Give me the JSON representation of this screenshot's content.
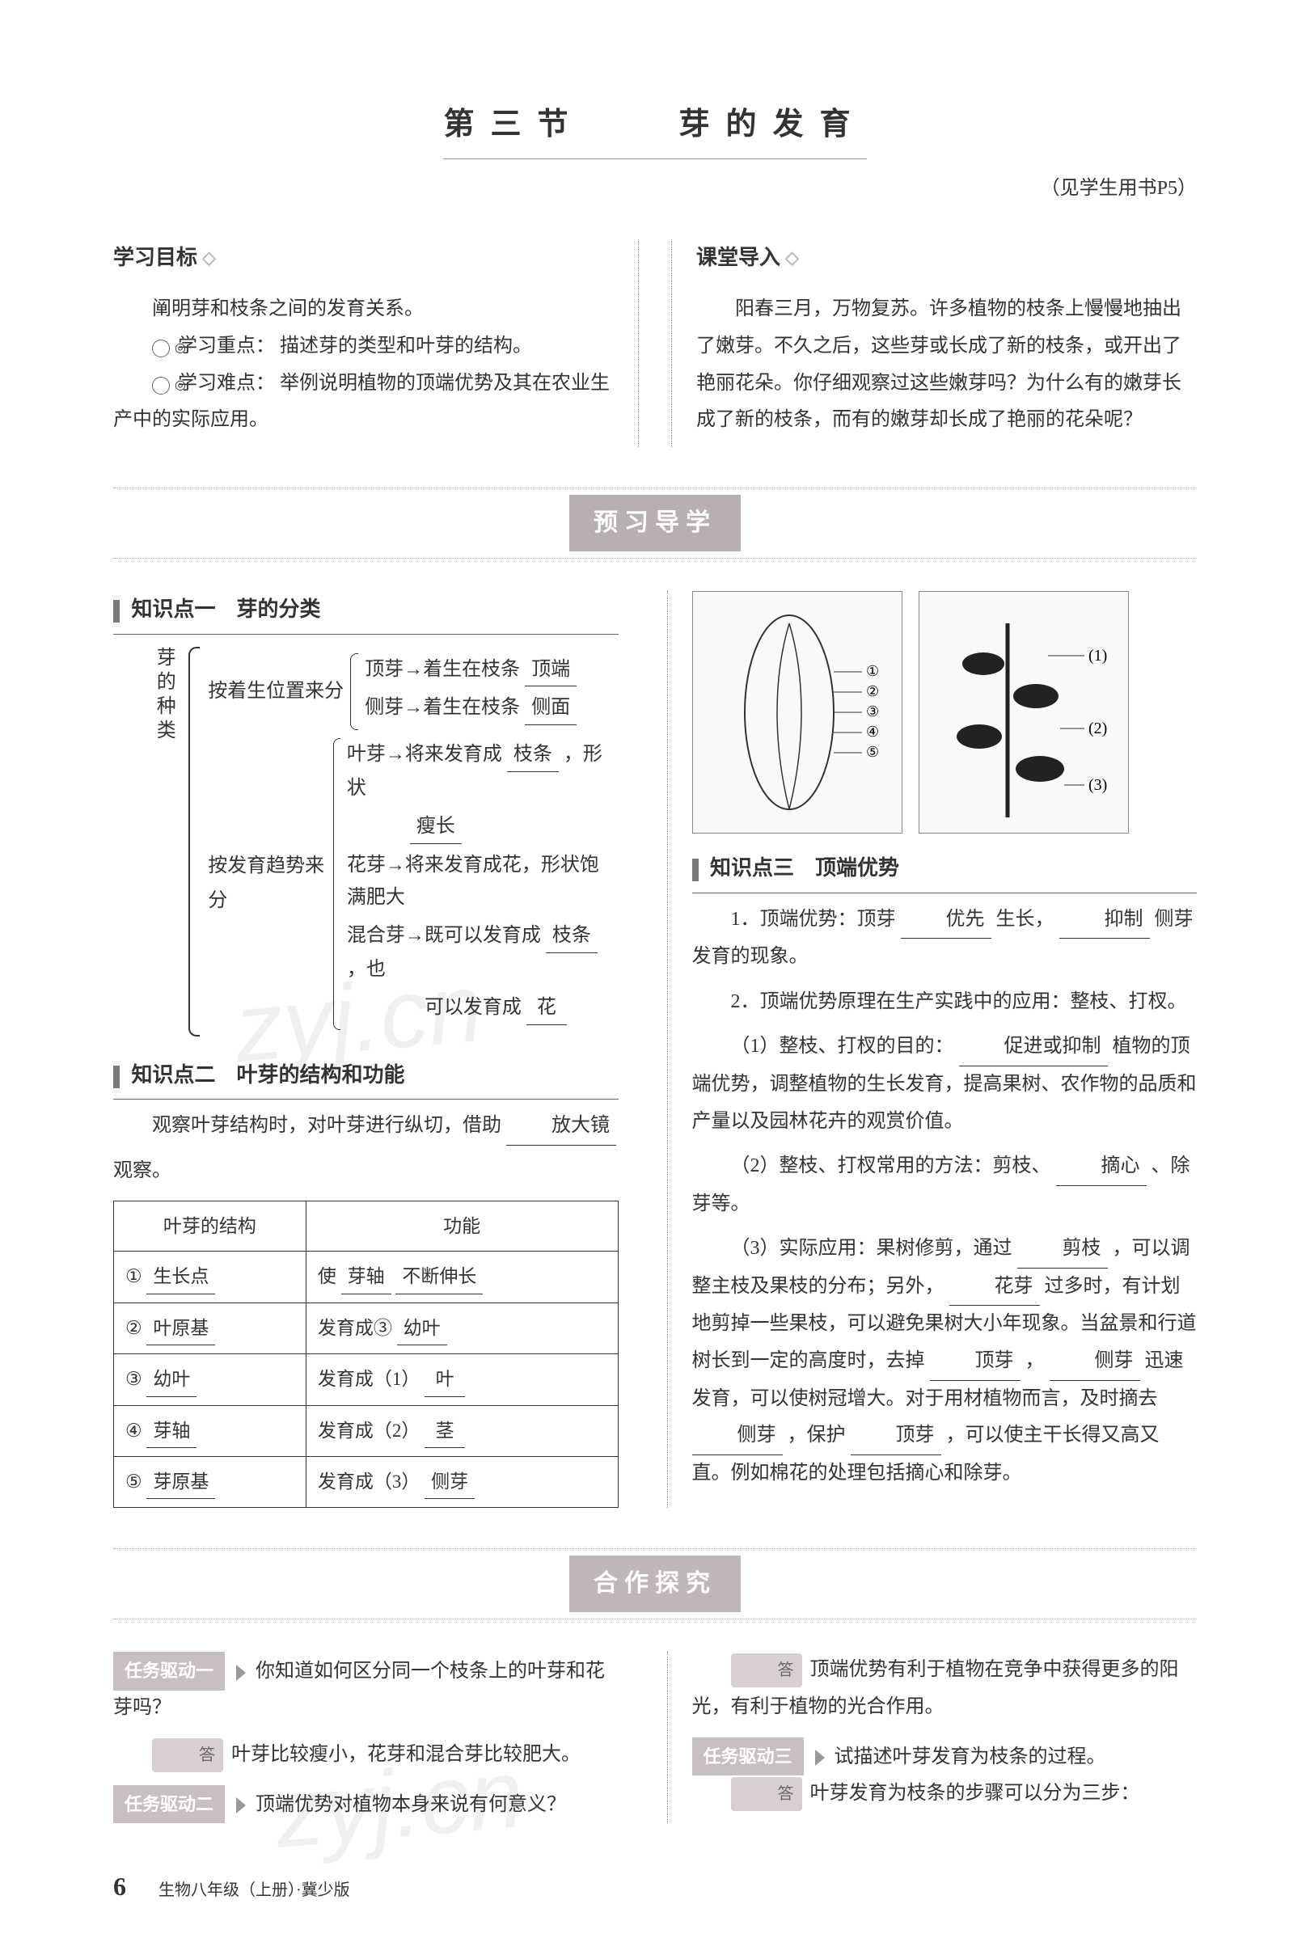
{
  "title": {
    "section_number": "第三节",
    "section_name": "芽的发育",
    "reference": "（见学生用书P5）"
  },
  "objectives": {
    "heading": "学习目标",
    "main": "阐明芽和枝条之间的发育关系。",
    "focus_label": "学习重点：",
    "focus_text": "描述芽的类型和叶芽的结构。",
    "difficulty_label": "学习难点：",
    "difficulty_text": "举例说明植物的顶端优势及其在农业生产中的实际应用。"
  },
  "lead_in": {
    "heading": "课堂导入",
    "text": "阳春三月，万物复苏。许多植物的枝条上慢慢地抽出了嫩芽。不久之后，这些芽或长成了新的枝条，或开出了艳丽花朵。你仔细观察过这些嫩芽吗？为什么有的嫩芽长成了新的枝条，而有的嫩芽却长成了艳丽的花朵呢？"
  },
  "banner1": "预习导学",
  "kp1": {
    "label": "知识点一　芽的分类",
    "root": "芽的种类",
    "branch1_label": "按着生位置来分",
    "branch1_lines": {
      "l1_pre": "顶芽→着生在枝条",
      "l1_blank": "顶端",
      "l2_pre": "侧芽→着生在枝条",
      "l2_blank": "侧面"
    },
    "branch2_label": "按发育趋势来分",
    "branch2_lines": {
      "l1_pre": "叶芽→将来发育成",
      "l1_blank": "枝条",
      "l1_post": "，形状",
      "l1b_blank": "瘦长",
      "l2_pre": "花芽→将来发育成花，形状饱满肥大",
      "l3_pre": "混合芽→既可以发育成",
      "l3_blank": "枝条",
      "l3_post": "，也",
      "l4_pre": "　　　　可以发育成",
      "l4_blank": "花"
    }
  },
  "kp2": {
    "label": "知识点二　叶芽的结构和功能",
    "intro_pre": "观察叶芽结构时，对叶芽进行纵切，借助",
    "intro_blank": "放大镜",
    "intro_post": "观察。",
    "table": {
      "header1": "叶芽的结构",
      "header2": "功能",
      "rows": [
        {
          "num": "①",
          "c1_blank": "生长点",
          "c2_pre": "使",
          "c2_blank1": "芽轴",
          "c2_blank2": "不断伸长"
        },
        {
          "num": "②",
          "c1_blank": "叶原基",
          "c2_pre": "发育成③",
          "c2_blank1": "幼叶",
          "c2_blank2": ""
        },
        {
          "num": "③",
          "c1_blank": "幼叶",
          "c2_pre": "发育成（1）",
          "c2_blank1": "叶",
          "c2_blank2": ""
        },
        {
          "num": "④",
          "c1_blank": "芽轴",
          "c2_pre": "发育成（2）",
          "c2_blank1": "茎",
          "c2_blank2": ""
        },
        {
          "num": "⑤",
          "c1_blank": "芽原基",
          "c2_pre": "发育成（3）",
          "c2_blank1": "侧芽",
          "c2_blank2": ""
        }
      ]
    }
  },
  "kp3": {
    "label": "知识点三　顶端优势",
    "item1_pre": "1．顶端优势：顶芽",
    "item1_b1": "优先",
    "item1_mid": "生长，",
    "item1_b2": "抑制",
    "item1_post": "侧芽发育的现象。",
    "item2": "2．顶端优势原理在生产实践中的应用：整枝、打杈。",
    "item2_1_pre": "（1）整枝、打杈的目的：",
    "item2_1_blank": "促进或抑制",
    "item2_1_post": "植物的顶端优势，调整植物的生长发育，提高果树、农作物的品质和产量以及园林花卉的观赏价值。",
    "item2_2_pre": "（2）整枝、打杈常用的方法：剪枝、",
    "item2_2_blank": "摘心",
    "item2_2_post": "、除芽等。",
    "item2_3_pre": "（3）实际应用：果树修剪，通过",
    "item2_3_b1": "剪枝",
    "item2_3_mid1": "，可以调整主枝及果枝的分布；另外，",
    "item2_3_b2": "花芽",
    "item2_3_mid2": "过多时，有计划地剪掉一些果枝，可以避免果树大小年现象。当盆景和行道树长到一定的高度时，去掉",
    "item2_3_b3": "顶芽",
    "item2_3_mid3": "，",
    "item2_3_b4": "侧芽",
    "item2_3_mid4": "迅速发育，可以使树冠增大。对于用材植物而言，及时摘去",
    "item2_3_b5": "侧芽",
    "item2_3_mid5": "，保护",
    "item2_3_b6": "顶芽",
    "item2_3_post": "，可以使主干长得又高又直。例如棉花的处理包括摘心和除芽。"
  },
  "banner2": "合作探究",
  "tasks": {
    "t1_label": "任务驱动一",
    "t1_q": "你知道如何区分同一个枝条上的叶芽和花芽吗？",
    "t1_a_tag": "答",
    "t1_a": "叶芽比较瘦小，花芽和混合芽比较肥大。",
    "t2_label": "任务驱动二",
    "t2_q": "顶端优势对植物本身来说有何意义？",
    "t2_a_tag": "答",
    "t2_a": "顶端优势有利于植物在竞争中获得更多的阳光，有利于植物的光合作用。",
    "t3_label": "任务驱动三",
    "t3_q": "试描述叶芽发育为枝条的过程。",
    "t3_a_tag": "答",
    "t3_a": "叶芽发育为枝条的步骤可以分为三步："
  },
  "footer": {
    "page": "6",
    "book": "生物八年级（上册）·冀少版"
  },
  "watermark": "zyj.cn",
  "diagram": {
    "labels": [
      "①",
      "②",
      "③",
      "④",
      "⑤"
    ],
    "right_labels": [
      "(1)",
      "(2)",
      "(3)"
    ]
  }
}
